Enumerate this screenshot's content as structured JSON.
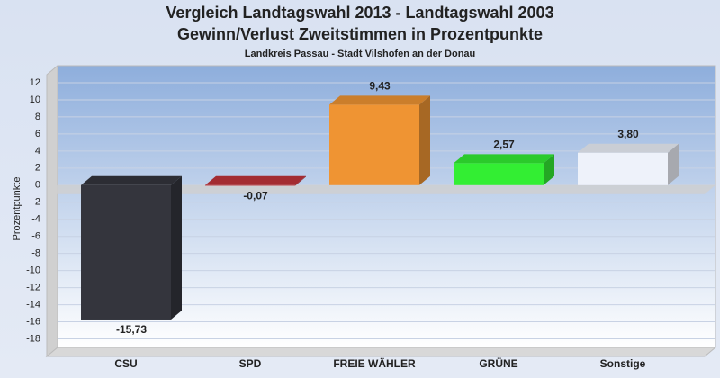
{
  "chart_data": {
    "type": "bar3d",
    "title": [
      "Vergleich Landtagswahl 2013 - Landtagswahl 2003",
      "Gewinn/Verlust Zweitstimmen in Prozentpunkte"
    ],
    "subtitle": "Landkreis Passau - Stadt Vilshofen an der Donau",
    "y_label": "Prozentpunkte",
    "categories": [
      "CSU",
      "SPD",
      "FREIE WÄHLER",
      "GRÜNE",
      "Sonstige"
    ],
    "values": [
      -15.73,
      -0.07,
      9.43,
      2.57,
      3.8
    ],
    "value_labels": [
      "-15,73",
      "-0,07",
      "9,43",
      "2,57",
      "3,80"
    ],
    "colors": [
      "#34353d",
      "#c0343b",
      "#ef9433",
      "#33ee33",
      "#eef2fa"
    ],
    "ylim": [
      -19,
      14
    ],
    "yticks": [
      -18,
      -16,
      -14,
      -12,
      -10,
      -8,
      -6,
      -4,
      -2,
      0,
      2,
      4,
      6,
      8,
      10,
      12
    ],
    "grid": true
  }
}
